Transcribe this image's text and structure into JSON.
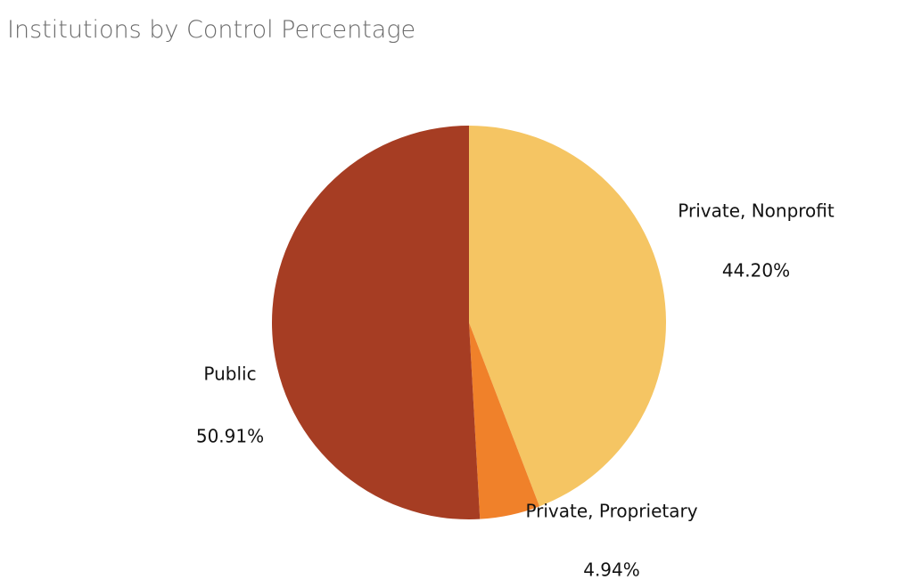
{
  "chart_data": {
    "type": "pie",
    "title": "Institutions by Control Percentage",
    "categories": [
      "Private, Nonprofit",
      "Private, Proprietary",
      "Public"
    ],
    "values": [
      44.2,
      4.94,
      50.91
    ],
    "value_labels": [
      "44.20%",
      "4.94%",
      "50.91%"
    ],
    "colors": [
      "#f5c563",
      "#f0812a",
      "#a63d23"
    ]
  }
}
